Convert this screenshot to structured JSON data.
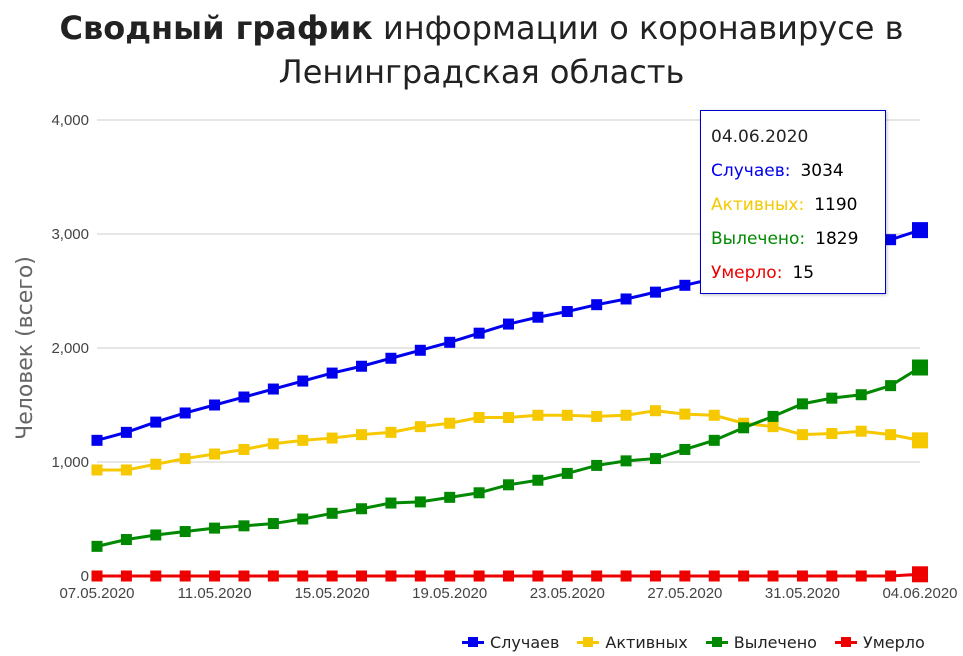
{
  "title": {
    "bold": "Сводный график",
    "rest": "информации о коронавирусе в",
    "line2": "Ленинградская область"
  },
  "tooltip": {
    "date": "04.06.2020",
    "rows": [
      {
        "label": "Случаев:",
        "value": "3034",
        "color": "#0000ee"
      },
      {
        "label": "Активных:",
        "value": "1190",
        "color": "#f5c800"
      },
      {
        "label": "Вылечено:",
        "value": "1829",
        "color": "#008800"
      },
      {
        "label": "Умерло:",
        "value": "15",
        "color": "#ee0000"
      }
    ]
  },
  "chart_data": {
    "type": "line",
    "ylabel": "Человек (всего)",
    "xlabel": "",
    "ylim": [
      0,
      4000
    ],
    "y_ticks": [
      "0",
      "1,000",
      "2,000",
      "3,000",
      "4,000"
    ],
    "grid": true,
    "legend_position": "bottom-right",
    "x": [
      "07.05.2020",
      "08.05.2020",
      "09.05.2020",
      "10.05.2020",
      "11.05.2020",
      "12.05.2020",
      "13.05.2020",
      "14.05.2020",
      "15.05.2020",
      "16.05.2020",
      "17.05.2020",
      "18.05.2020",
      "19.05.2020",
      "20.05.2020",
      "21.05.2020",
      "22.05.2020",
      "23.05.2020",
      "24.05.2020",
      "25.05.2020",
      "26.05.2020",
      "27.05.2020",
      "28.05.2020",
      "29.05.2020",
      "30.05.2020",
      "31.05.2020",
      "01.06.2020",
      "02.06.2020",
      "03.06.2020",
      "04.06.2020"
    ],
    "x_tick_labels": [
      "07.05.2020",
      "11.05.2020",
      "15.05.2020",
      "19.05.2020",
      "23.05.2020",
      "27.05.2020",
      "31.05.2020",
      "04.06.2020"
    ],
    "series": [
      {
        "name": "Случаев",
        "color": "#0000ee",
        "values": [
          1190,
          1260,
          1350,
          1430,
          1500,
          1570,
          1640,
          1710,
          1780,
          1840,
          1910,
          1980,
          2050,
          2130,
          2210,
          2270,
          2320,
          2380,
          2430,
          2490,
          2550,
          2610,
          2660,
          2710,
          2770,
          2830,
          2880,
          2950,
          3034
        ]
      },
      {
        "name": "Активных",
        "color": "#f5c800",
        "values": [
          930,
          930,
          980,
          1030,
          1070,
          1110,
          1160,
          1190,
          1210,
          1240,
          1260,
          1310,
          1340,
          1390,
          1390,
          1410,
          1410,
          1400,
          1410,
          1450,
          1420,
          1410,
          1340,
          1310,
          1240,
          1250,
          1270,
          1240,
          1190
        ]
      },
      {
        "name": "Вылечено",
        "color": "#008800",
        "values": [
          260,
          320,
          360,
          390,
          420,
          440,
          460,
          500,
          550,
          590,
          640,
          650,
          690,
          730,
          800,
          840,
          900,
          970,
          1010,
          1030,
          1110,
          1190,
          1300,
          1400,
          1510,
          1560,
          1590,
          1670,
          1829
        ]
      },
      {
        "name": "Умерло",
        "color": "#ee0000",
        "values": [
          0,
          0,
          0,
          0,
          0,
          0,
          0,
          0,
          0,
          0,
          0,
          0,
          0,
          0,
          0,
          0,
          0,
          0,
          0,
          0,
          0,
          0,
          0,
          0,
          0,
          0,
          0,
          0,
          15
        ]
      }
    ]
  }
}
